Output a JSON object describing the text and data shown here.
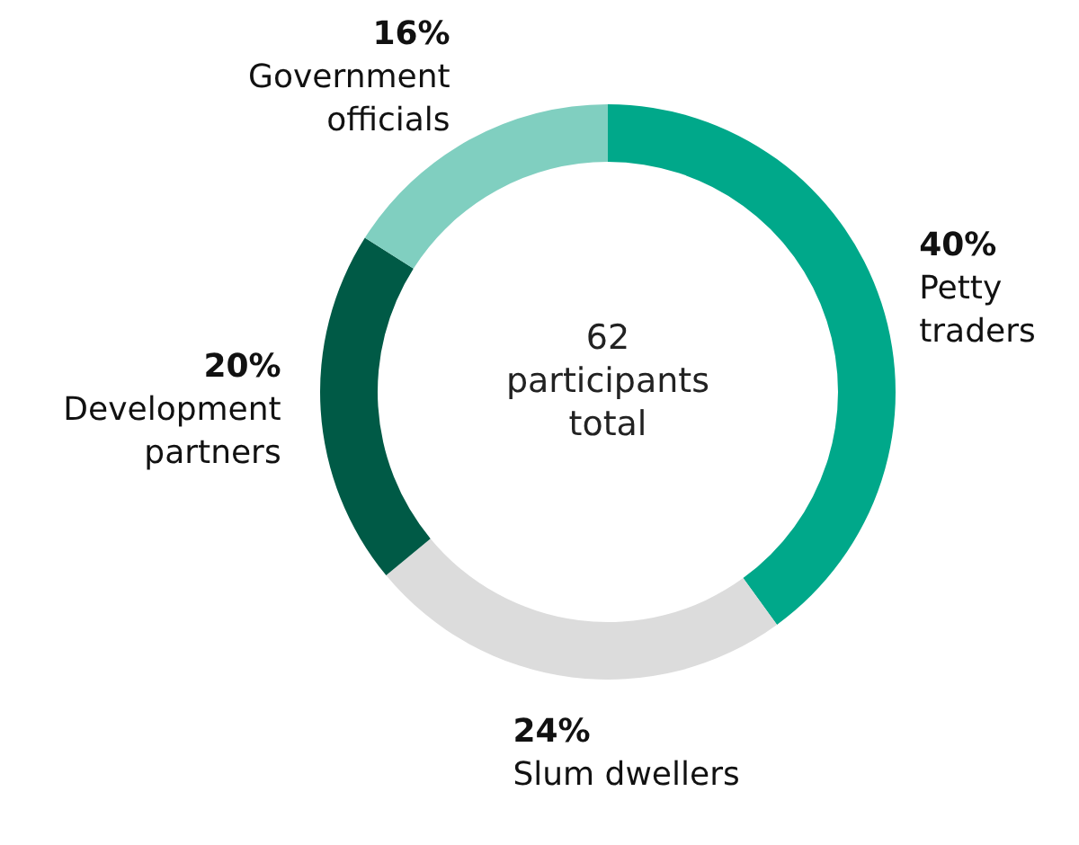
{
  "chart_data": {
    "type": "donut",
    "categories": [
      "Petty traders",
      "Slum dwellers",
      "Development partners",
      "Government officials"
    ],
    "values": [
      40,
      24,
      20,
      16
    ],
    "colors": [
      "#00a88a",
      "#dcdcdc",
      "#005a46",
      "#80cfc0"
    ],
    "value_labels": [
      "40%",
      "24%",
      "20%",
      "16%"
    ],
    "annotations": [
      "62 participants total"
    ]
  }
}
